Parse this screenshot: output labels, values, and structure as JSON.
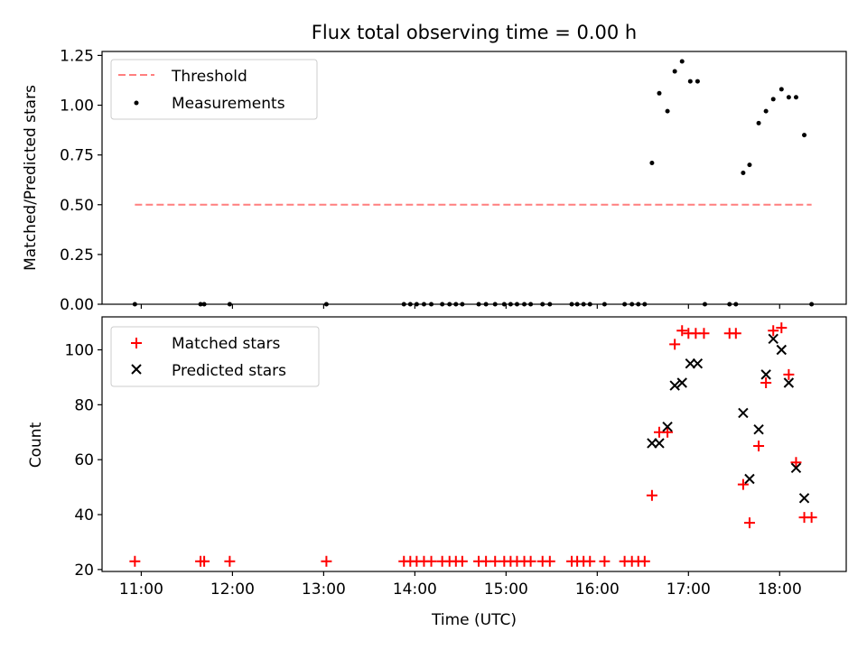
{
  "chart_data": [
    {
      "type": "scatter",
      "title": "Flux total observing time = 0.00 h",
      "xlabel": "",
      "ylabel": "Matched/Predicted stars",
      "x_unit": "hours (UTC)",
      "xlim": [
        10.57,
        18.73
      ],
      "ylim": [
        0,
        1.27
      ],
      "yticks": [
        0,
        0.25,
        0.5,
        0.75,
        1.0,
        1.25
      ],
      "ytick_labels": [
        "0.00",
        "0.25",
        "0.50",
        "0.75",
        "1.00",
        "1.25"
      ],
      "grid": false,
      "legend_position": "top-left",
      "threshold": {
        "name": "Threshold",
        "value": 0.5,
        "x_range": [
          10.93,
          18.35
        ],
        "color": "#ff7f7f"
      },
      "series": [
        {
          "name": "Measurements",
          "color": "#000000",
          "points": [
            [
              10.93,
              0
            ],
            [
              11.65,
              0
            ],
            [
              11.69,
              0
            ],
            [
              11.97,
              0
            ],
            [
              13.03,
              0
            ],
            [
              13.88,
              0
            ],
            [
              13.95,
              0
            ],
            [
              14.02,
              0
            ],
            [
              14.1,
              0
            ],
            [
              14.18,
              0
            ],
            [
              14.3,
              0
            ],
            [
              14.38,
              0
            ],
            [
              14.45,
              0
            ],
            [
              14.52,
              0
            ],
            [
              14.7,
              0
            ],
            [
              14.78,
              0
            ],
            [
              14.88,
              0
            ],
            [
              14.98,
              0
            ],
            [
              15.05,
              0
            ],
            [
              15.12,
              0
            ],
            [
              15.2,
              0
            ],
            [
              15.27,
              0
            ],
            [
              15.4,
              0
            ],
            [
              15.48,
              0
            ],
            [
              15.72,
              0
            ],
            [
              15.78,
              0
            ],
            [
              15.85,
              0
            ],
            [
              15.92,
              0
            ],
            [
              16.08,
              0
            ],
            [
              16.3,
              0
            ],
            [
              16.38,
              0
            ],
            [
              16.45,
              0
            ],
            [
              16.52,
              0
            ],
            [
              17.18,
              0
            ],
            [
              17.45,
              0
            ],
            [
              17.52,
              0
            ],
            [
              18.35,
              0
            ],
            [
              16.6,
              0.71
            ],
            [
              16.68,
              1.06
            ],
            [
              16.77,
              0.97
            ],
            [
              16.85,
              1.17
            ],
            [
              16.93,
              1.22
            ],
            [
              17.02,
              1.12
            ],
            [
              17.1,
              1.12
            ],
            [
              17.6,
              0.66
            ],
            [
              17.67,
              0.7
            ],
            [
              17.77,
              0.91
            ],
            [
              17.85,
              0.97
            ],
            [
              17.93,
              1.03
            ],
            [
              18.02,
              1.08
            ],
            [
              18.1,
              1.04
            ],
            [
              18.18,
              1.04
            ],
            [
              18.27,
              0.85
            ]
          ]
        }
      ]
    },
    {
      "type": "scatter",
      "title": "",
      "xlabel": "Time (UTC)",
      "ylabel": "Count",
      "x_unit": "hours (UTC)",
      "xlim": [
        10.57,
        18.73
      ],
      "ylim": [
        19.3,
        112
      ],
      "yticks": [
        20,
        40,
        60,
        80,
        100
      ],
      "ytick_labels": [
        "20",
        "40",
        "60",
        "80",
        "100"
      ],
      "xticks": [
        11,
        12,
        13,
        14,
        15,
        16,
        17,
        18
      ],
      "xtick_labels": [
        "11:00",
        "12:00",
        "13:00",
        "14:00",
        "15:00",
        "16:00",
        "17:00",
        "18:00"
      ],
      "grid": false,
      "legend_position": "top-left",
      "series": [
        {
          "name": "Matched stars",
          "marker": "plus",
          "color": "#ff0000",
          "points": [
            [
              10.93,
              23
            ],
            [
              11.65,
              23
            ],
            [
              11.69,
              23
            ],
            [
              11.97,
              23
            ],
            [
              13.03,
              23
            ],
            [
              13.88,
              23
            ],
            [
              13.95,
              23
            ],
            [
              14.02,
              23
            ],
            [
              14.1,
              23
            ],
            [
              14.18,
              23
            ],
            [
              14.3,
              23
            ],
            [
              14.38,
              23
            ],
            [
              14.45,
              23
            ],
            [
              14.52,
              23
            ],
            [
              14.7,
              23
            ],
            [
              14.78,
              23
            ],
            [
              14.88,
              23
            ],
            [
              14.98,
              23
            ],
            [
              15.05,
              23
            ],
            [
              15.12,
              23
            ],
            [
              15.2,
              23
            ],
            [
              15.27,
              23
            ],
            [
              15.4,
              23
            ],
            [
              15.48,
              23
            ],
            [
              15.72,
              23
            ],
            [
              15.78,
              23
            ],
            [
              15.85,
              23
            ],
            [
              15.92,
              23
            ],
            [
              16.08,
              23
            ],
            [
              16.3,
              23
            ],
            [
              16.38,
              23
            ],
            [
              16.45,
              23
            ],
            [
              16.52,
              23
            ],
            [
              16.6,
              47
            ],
            [
              16.68,
              70
            ],
            [
              16.77,
              70
            ],
            [
              16.85,
              102
            ],
            [
              16.93,
              107
            ],
            [
              17.0,
              106
            ],
            [
              17.08,
              106
            ],
            [
              17.17,
              106
            ],
            [
              17.45,
              106
            ],
            [
              17.52,
              106
            ],
            [
              17.6,
              51
            ],
            [
              17.67,
              37
            ],
            [
              17.77,
              65
            ],
            [
              17.85,
              88
            ],
            [
              17.93,
              107
            ],
            [
              18.02,
              108
            ],
            [
              18.1,
              91
            ],
            [
              18.18,
              59
            ],
            [
              18.27,
              39
            ],
            [
              18.35,
              39
            ]
          ]
        },
        {
          "name": "Predicted stars",
          "marker": "x",
          "color": "#000000",
          "points": [
            [
              16.6,
              66
            ],
            [
              16.68,
              66
            ],
            [
              16.77,
              72
            ],
            [
              16.85,
              87
            ],
            [
              16.93,
              88
            ],
            [
              17.02,
              95
            ],
            [
              17.1,
              95
            ],
            [
              17.6,
              77
            ],
            [
              17.67,
              53
            ],
            [
              17.77,
              71
            ],
            [
              17.85,
              91
            ],
            [
              17.93,
              104
            ],
            [
              18.02,
              100
            ],
            [
              18.1,
              88
            ],
            [
              18.18,
              57
            ],
            [
              18.27,
              46
            ]
          ]
        }
      ]
    }
  ]
}
